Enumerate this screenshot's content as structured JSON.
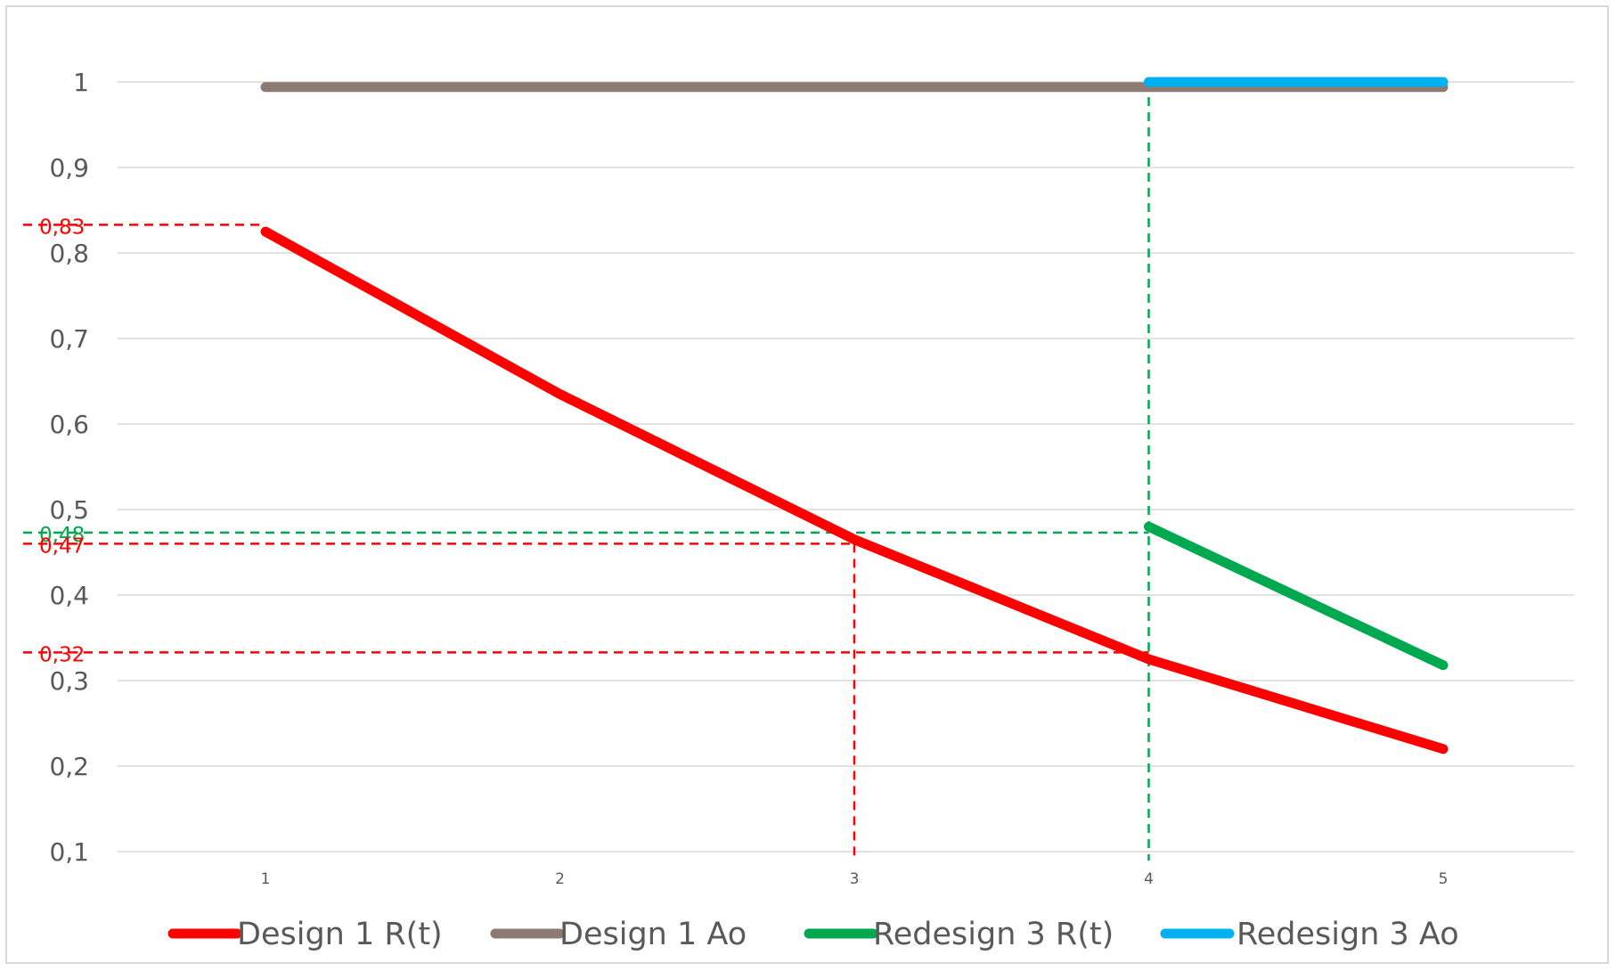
{
  "chart_data": {
    "type": "line",
    "title": "",
    "xlabel": "",
    "ylabel": "",
    "x": [
      1,
      2,
      3,
      4,
      5
    ],
    "x_tick_labels": [
      "1",
      "2",
      "3",
      "4",
      "5"
    ],
    "y_tick_values": [
      0.1,
      0.2,
      0.3,
      0.4,
      0.5,
      0.6,
      0.7,
      0.8,
      0.9,
      1
    ],
    "y_tick_labels": [
      "0,1",
      "0,2",
      "0,3",
      "0,4",
      "0,5",
      "0,6",
      "0,7",
      "0,8",
      "0,9",
      "1"
    ],
    "ylim": [
      0.1,
      1
    ],
    "grid": true,
    "legend_position": "bottom",
    "series": [
      {
        "name": "Design 1 R(t)",
        "color": "#ff0000",
        "x": [
          1,
          2,
          3,
          4,
          5
        ],
        "values": [
          0.825,
          0.635,
          0.465,
          0.325,
          0.22
        ]
      },
      {
        "name": "Design 1 Ao",
        "color": "#8c7b70",
        "x": [
          1,
          2,
          3,
          4,
          5
        ],
        "values": [
          0.994,
          0.994,
          0.994,
          0.994,
          0.994
        ]
      },
      {
        "name": "Redesign 3 R(t)",
        "color": "#00a84f",
        "x": [
          4,
          5
        ],
        "values": [
          0.48,
          0.318
        ]
      },
      {
        "name": "Redesign 3 Ao",
        "color": "#00b0f0",
        "x": [
          4,
          5
        ],
        "values": [
          1.0,
          1.0
        ]
      }
    ],
    "annotations": [
      {
        "label": "0,83",
        "y": 0.833,
        "x_end": 1,
        "color": "#ff0000"
      },
      {
        "label": "0,48",
        "y": 0.473,
        "x_end": 4,
        "color": "#00a84f"
      },
      {
        "label": "0,47",
        "y": 0.46,
        "x_end": 3,
        "color": "#ff0000"
      },
      {
        "label": "0,32",
        "y": 0.333,
        "x_end": 4,
        "color": "#ff0000"
      }
    ],
    "reference_vertical_lines": [
      {
        "x": 3,
        "y_top": 0.46,
        "color": "#ff0000"
      },
      {
        "x": 4,
        "y_top": 1.0,
        "color": "#00a84f"
      }
    ]
  }
}
